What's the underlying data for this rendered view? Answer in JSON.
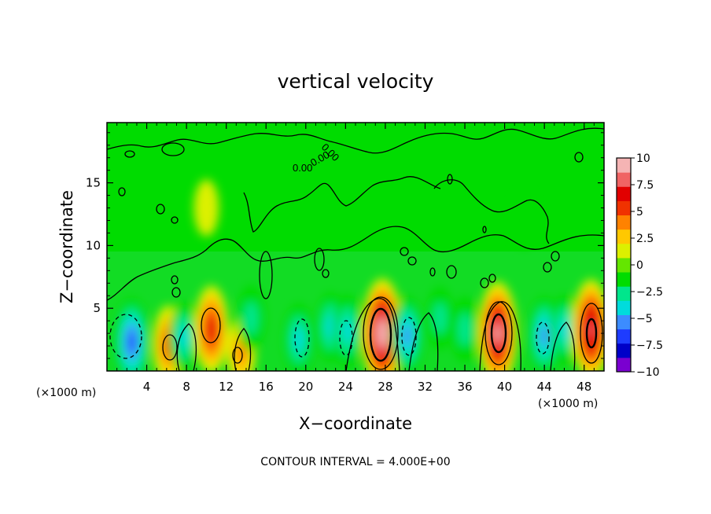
{
  "chart_data": {
    "type": "heatmap",
    "title": "vertical velocity",
    "xlabel": "X−coordinate",
    "ylabel": "Z−coordinate",
    "x_unit": "(×1000 m)",
    "x_unit_right": "(×1000 m)",
    "xlim": [
      0,
      50
    ],
    "ylim": [
      0,
      19.8
    ],
    "x_ticks": [
      "4",
      "8",
      "12",
      "16",
      "20",
      "24",
      "28",
      "32",
      "36",
      "40",
      "44",
      "48"
    ],
    "y_ticks": [
      "5",
      "10",
      "15"
    ],
    "colorbar": {
      "range": [
        -10,
        10
      ],
      "tick_labels": [
        "10",
        "7.5",
        "5",
        "2.5",
        "0",
        "−2.5",
        "−5",
        "−7.5",
        "−10"
      ],
      "colors": [
        "#7a00d0",
        "#0000c8",
        "#1e3cff",
        "#3c8cff",
        "#00dcdc",
        "#00e68c",
        "#00dc00",
        "#64e600",
        "#dcf000",
        "#ffc800",
        "#ff8200",
        "#f03200",
        "#e10000",
        "#f06464",
        "#f5b4b4"
      ]
    },
    "background_value": 0,
    "features": [
      {
        "x": 2.5,
        "z": 2.3,
        "value": -6.5
      },
      {
        "x": 6.2,
        "z": 2.1,
        "value": 5
      },
      {
        "x": 7.7,
        "z": 2.7,
        "value": -3.5
      },
      {
        "x": 10.5,
        "z": 3.3,
        "value": 6.5
      },
      {
        "x": 13.5,
        "z": 1.5,
        "value": 3.5
      },
      {
        "x": 14.5,
        "z": 4.2,
        "value": -3
      },
      {
        "x": 19.3,
        "z": 2.5,
        "value": -4
      },
      {
        "x": 22.5,
        "z": 3.5,
        "value": -3.5
      },
      {
        "x": 24.2,
        "z": 3.2,
        "value": -4
      },
      {
        "x": 27.7,
        "z": 3.0,
        "value": 10
      },
      {
        "x": 30.2,
        "z": 2.8,
        "value": -5
      },
      {
        "x": 33.5,
        "z": 4.2,
        "value": -2.5
      },
      {
        "x": 36.0,
        "z": 3.3,
        "value": -3
      },
      {
        "x": 39.3,
        "z": 3.0,
        "value": 9
      },
      {
        "x": 44.0,
        "z": 2.8,
        "value": -5
      },
      {
        "x": 46.0,
        "z": 3.3,
        "value": -3.5
      },
      {
        "x": 48.7,
        "z": 3.3,
        "value": 8.5
      },
      {
        "x": 10.0,
        "z": 13.0,
        "value": 1.5
      },
      {
        "x": 42.0,
        "z": 12.0,
        "value": -1.5
      }
    ],
    "contour_interval": "CONTOUR INTERVAL = 4.000E+00",
    "contour_labels": [
      "0.00",
      "0.00",
      "0.00"
    ],
    "grid": false,
    "legend": "colorbar-right"
  }
}
